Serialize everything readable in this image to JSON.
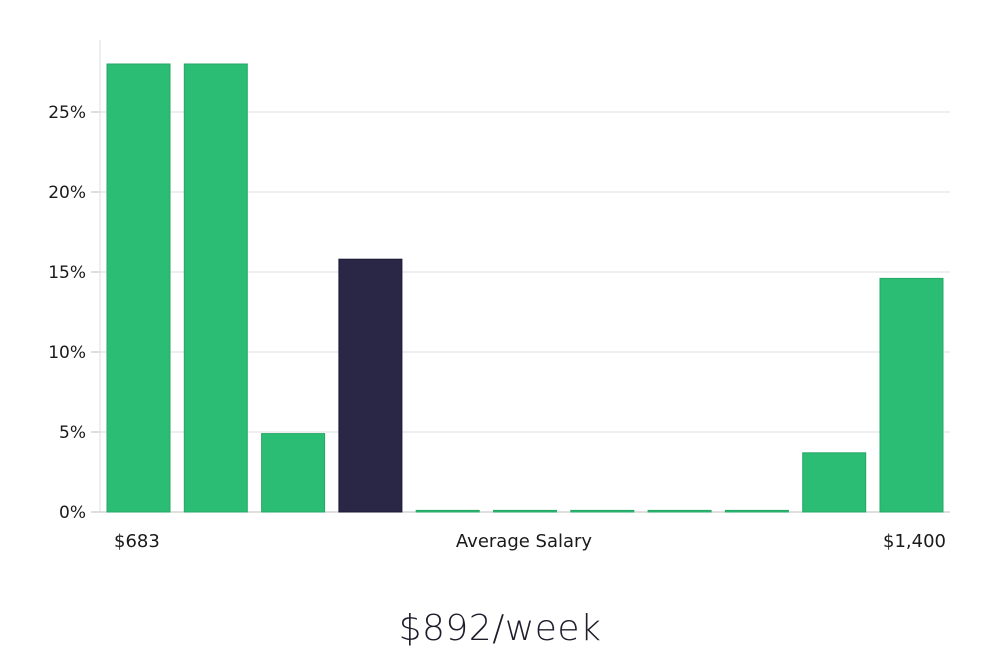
{
  "chart_data": {
    "type": "bar",
    "highlight_index": 3,
    "values": [
      28.0,
      28.0,
      4.9,
      15.8,
      0.1,
      0.1,
      0.1,
      0.1,
      0.1,
      3.7,
      14.6
    ],
    "ylim": [
      0,
      29.5
    ],
    "yticks": [
      0,
      5,
      10,
      15,
      20,
      25
    ],
    "ytick_labels": [
      "0%",
      "5%",
      "10%",
      "15%",
      "20%",
      "25%"
    ],
    "x_labels": {
      "min": "$683",
      "center": "Average Salary",
      "max": "$1,400"
    },
    "colors": {
      "bar": "#2bbd74",
      "highlight": "#2a2746",
      "grid": "#dcdcdc",
      "axis": "#bfbfbf"
    },
    "grid": true
  },
  "salary": {
    "value": "$892/week"
  }
}
